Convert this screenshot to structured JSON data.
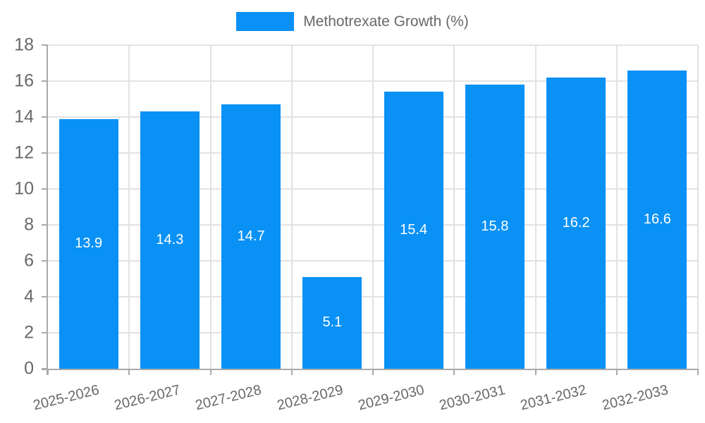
{
  "legend": {
    "label": "Methotrexate Growth (%)"
  },
  "colors": {
    "bar": "#0a91f5",
    "grid": "#e2e2e2",
    "axis": "#a9a9a9",
    "text": "#686868",
    "value_label": "#ffffff",
    "background": "#ffffff"
  },
  "chart_data": {
    "type": "bar",
    "title": "",
    "xlabel": "",
    "ylabel": "",
    "legend": "Methotrexate Growth (%)",
    "legend_position": "top-center",
    "grid": true,
    "categories": [
      "2025-2026",
      "2026-2027",
      "2027-2028",
      "2028-2029",
      "2029-2030",
      "2030-2031",
      "2031-2032",
      "2032-2033"
    ],
    "series": [
      {
        "name": "Methotrexate Growth (%)",
        "values": [
          13.9,
          14.3,
          14.7,
          5.1,
          15.4,
          15.8,
          16.2,
          16.6
        ]
      }
    ],
    "value_labels": [
      "13.9",
      "14.3",
      "14.7",
      "5.1",
      "15.4",
      "15.8",
      "16.2",
      "16.6"
    ],
    "value_labels_position": "inside-middle",
    "ylim": [
      0,
      18
    ],
    "yticks": [
      0,
      2,
      4,
      6,
      8,
      10,
      12,
      14,
      16,
      18
    ]
  }
}
